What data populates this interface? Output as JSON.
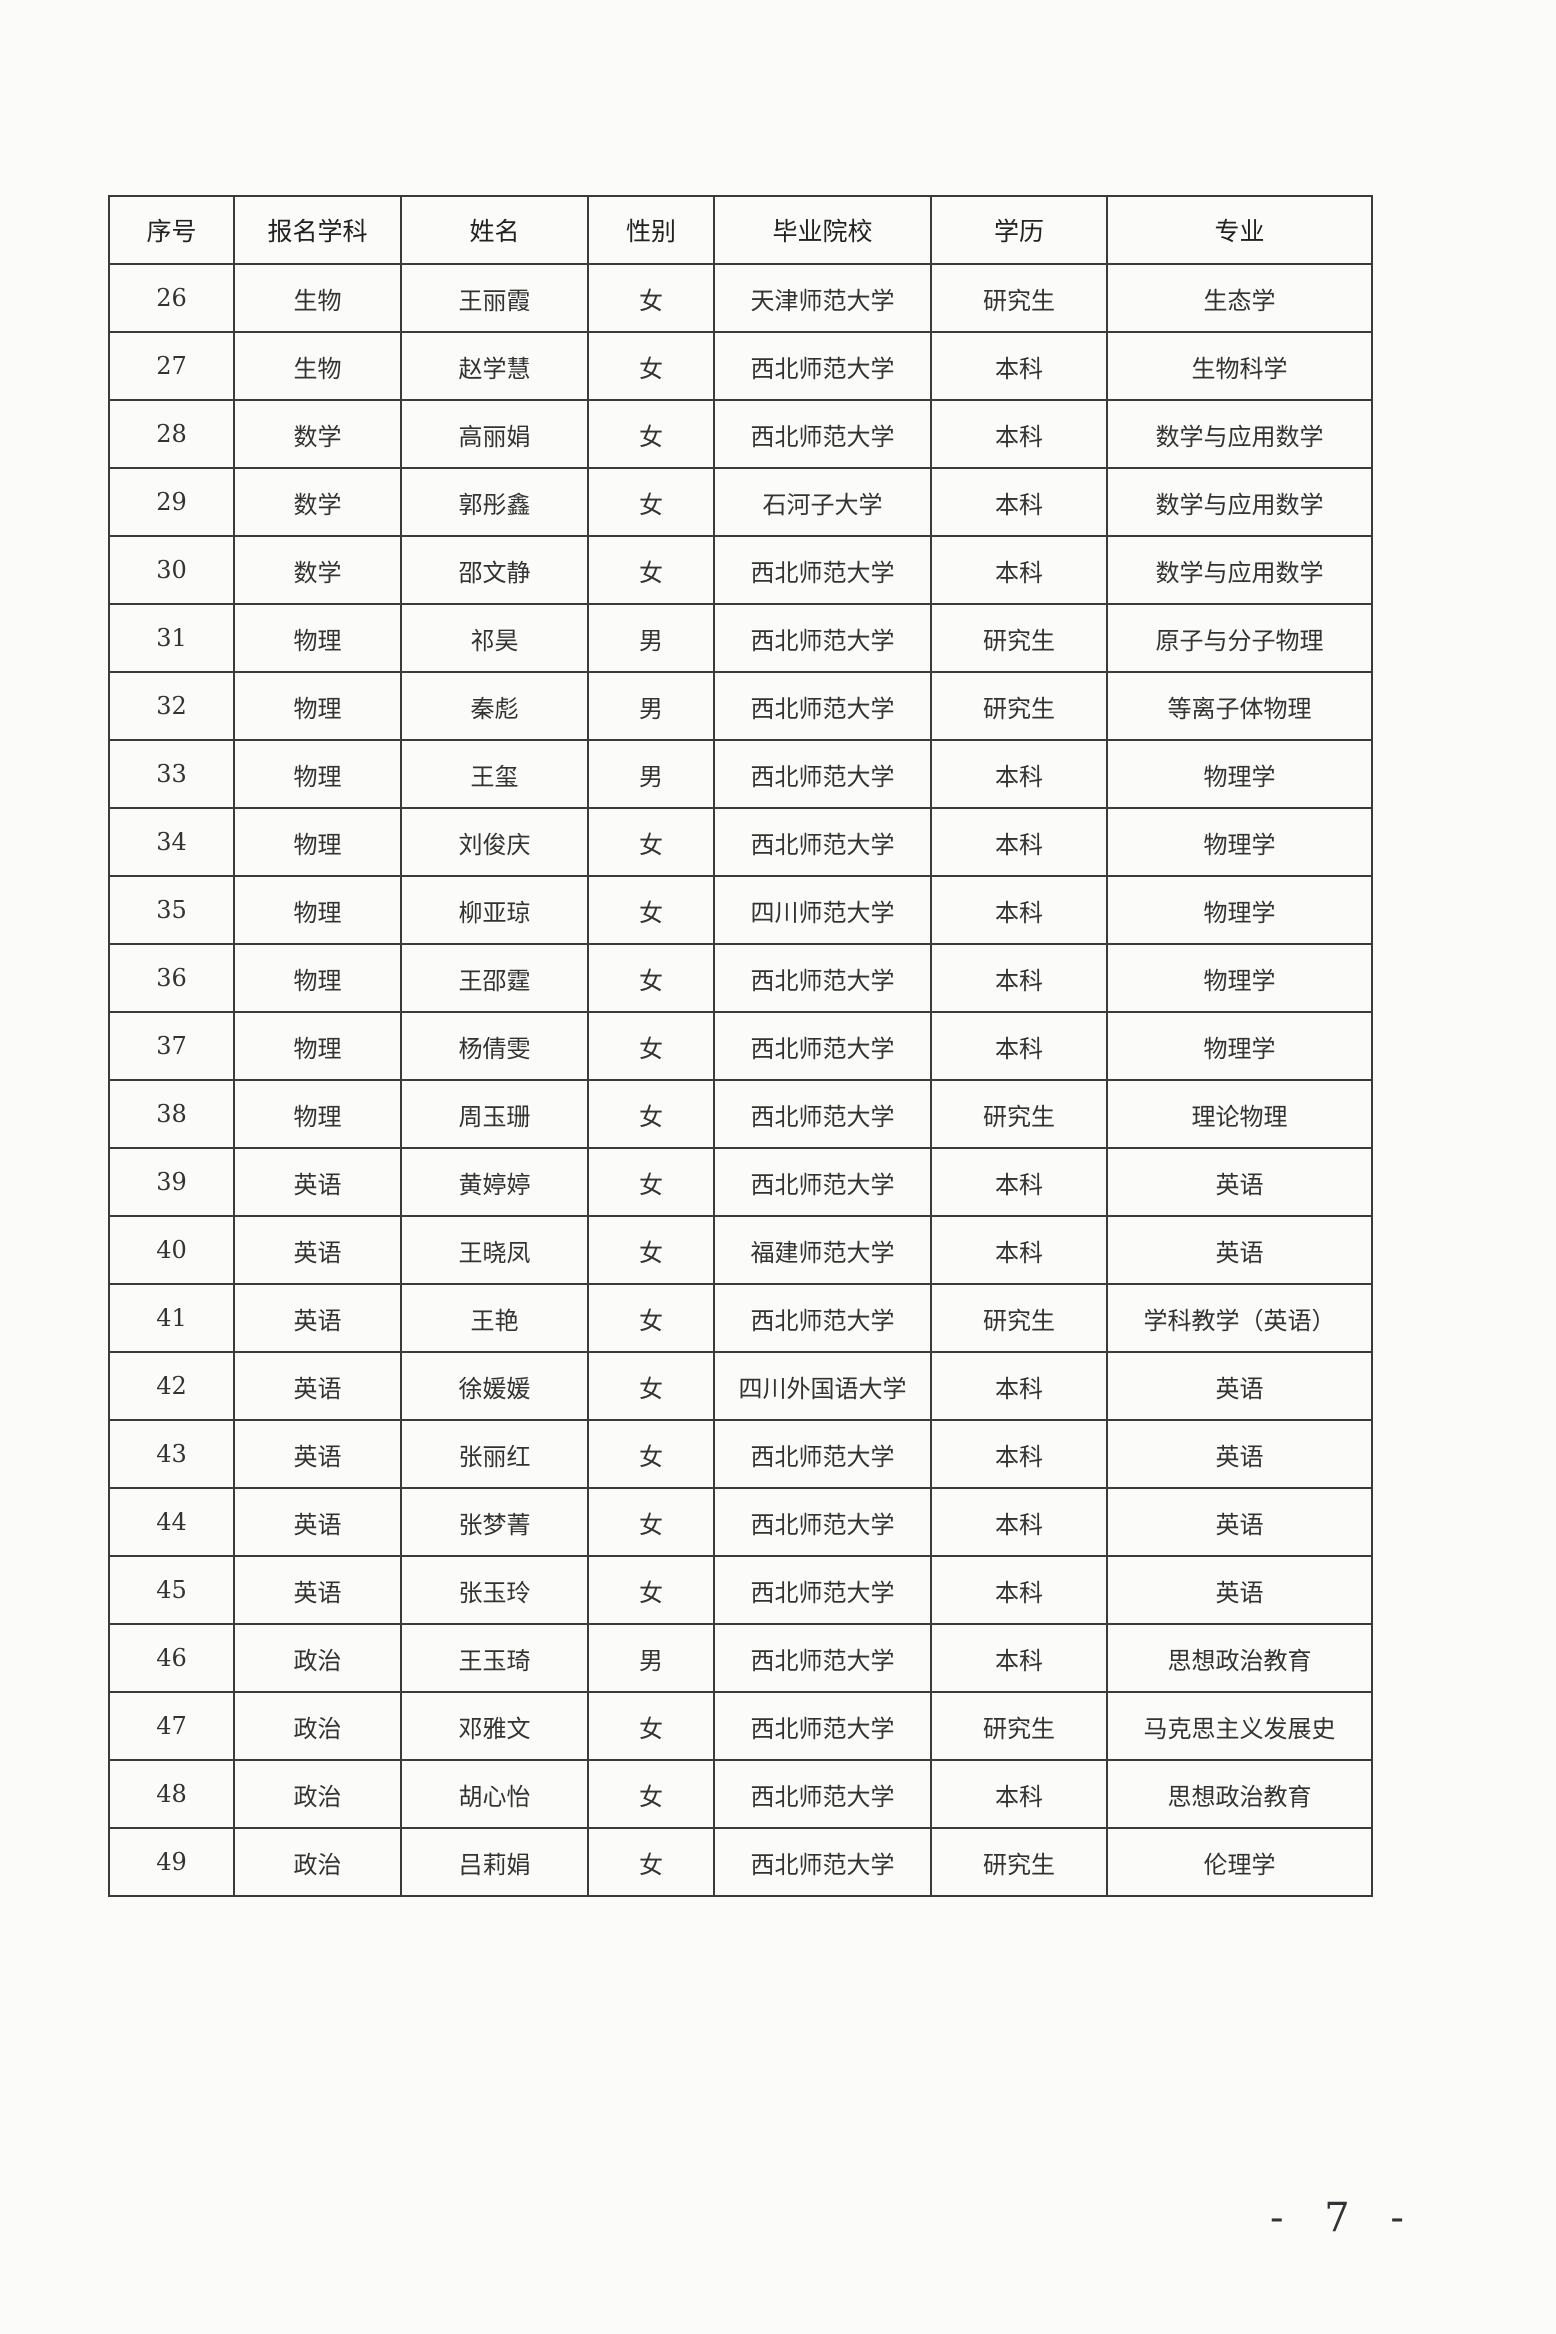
{
  "table": {
    "headers": [
      "序号",
      "报名学科",
      "姓名",
      "性别",
      "毕业院校",
      "学历",
      "专业"
    ],
    "rows": [
      [
        "26",
        "生物",
        "王丽霞",
        "女",
        "天津师范大学",
        "研究生",
        "生态学"
      ],
      [
        "27",
        "生物",
        "赵学慧",
        "女",
        "西北师范大学",
        "本科",
        "生物科学"
      ],
      [
        "28",
        "数学",
        "高丽娟",
        "女",
        "西北师范大学",
        "本科",
        "数学与应用数学"
      ],
      [
        "29",
        "数学",
        "郭彤鑫",
        "女",
        "石河子大学",
        "本科",
        "数学与应用数学"
      ],
      [
        "30",
        "数学",
        "邵文静",
        "女",
        "西北师范大学",
        "本科",
        "数学与应用数学"
      ],
      [
        "31",
        "物理",
        "祁昊",
        "男",
        "西北师范大学",
        "研究生",
        "原子与分子物理"
      ],
      [
        "32",
        "物理",
        "秦彪",
        "男",
        "西北师范大学",
        "研究生",
        "等离子体物理"
      ],
      [
        "33",
        "物理",
        "王玺",
        "男",
        "西北师范大学",
        "本科",
        "物理学"
      ],
      [
        "34",
        "物理",
        "刘俊庆",
        "女",
        "西北师范大学",
        "本科",
        "物理学"
      ],
      [
        "35",
        "物理",
        "柳亚琼",
        "女",
        "四川师范大学",
        "本科",
        "物理学"
      ],
      [
        "36",
        "物理",
        "王邵霆",
        "女",
        "西北师范大学",
        "本科",
        "物理学"
      ],
      [
        "37",
        "物理",
        "杨倩雯",
        "女",
        "西北师范大学",
        "本科",
        "物理学"
      ],
      [
        "38",
        "物理",
        "周玉珊",
        "女",
        "西北师范大学",
        "研究生",
        "理论物理"
      ],
      [
        "39",
        "英语",
        "黄婷婷",
        "女",
        "西北师范大学",
        "本科",
        "英语"
      ],
      [
        "40",
        "英语",
        "王晓凤",
        "女",
        "福建师范大学",
        "本科",
        "英语"
      ],
      [
        "41",
        "英语",
        "王艳",
        "女",
        "西北师范大学",
        "研究生",
        "学科教学（英语）"
      ],
      [
        "42",
        "英语",
        "徐媛媛",
        "女",
        "四川外国语大学",
        "本科",
        "英语"
      ],
      [
        "43",
        "英语",
        "张丽红",
        "女",
        "西北师范大学",
        "本科",
        "英语"
      ],
      [
        "44",
        "英语",
        "张梦菁",
        "女",
        "西北师范大学",
        "本科",
        "英语"
      ],
      [
        "45",
        "英语",
        "张玉玲",
        "女",
        "西北师范大学",
        "本科",
        "英语"
      ],
      [
        "46",
        "政治",
        "王玉琦",
        "男",
        "西北师范大学",
        "本科",
        "思想政治教育"
      ],
      [
        "47",
        "政治",
        "邓雅文",
        "女",
        "西北师范大学",
        "研究生",
        "马克思主义发展史"
      ],
      [
        "48",
        "政治",
        "胡心怡",
        "女",
        "西北师范大学",
        "本科",
        "思想政治教育"
      ],
      [
        "49",
        "政治",
        "吕莉娟",
        "女",
        "西北师范大学",
        "研究生",
        "伦理学"
      ]
    ]
  },
  "page_number": "- 7 -"
}
